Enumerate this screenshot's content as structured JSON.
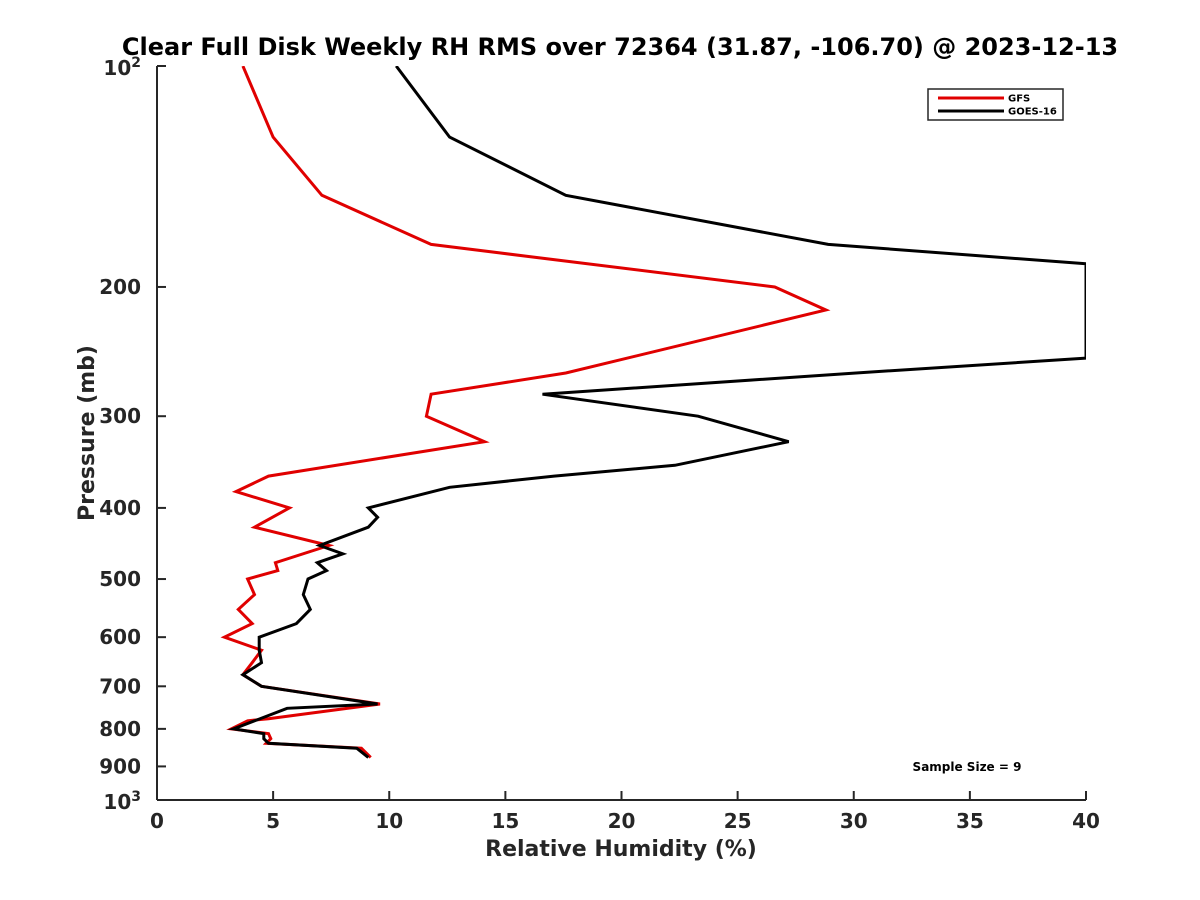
{
  "chart_data": {
    "type": "line",
    "title": "Clear Full Disk Weekly RH RMS over 72364 (31.87, -106.70) @ 2023-12-13",
    "xlabel": "Relative Humidity (%)",
    "ylabel": "Pressure (mb)",
    "xlim": [
      0,
      40
    ],
    "ylim": [
      100,
      1000
    ],
    "y_scale": "log",
    "y_reversed": true,
    "grid": false,
    "legend_position": "top-right",
    "x_ticks": [
      0,
      5,
      10,
      15,
      20,
      25,
      30,
      35,
      40
    ],
    "x_tick_labels": [
      "0",
      "5",
      "10",
      "15",
      "20",
      "25",
      "30",
      "35",
      "40"
    ],
    "y_ticks": [
      {
        "value": 100,
        "base": "10",
        "exp": "2"
      },
      {
        "value": 200,
        "label": "200"
      },
      {
        "value": 300,
        "label": "300"
      },
      {
        "value": 400,
        "label": "400"
      },
      {
        "value": 500,
        "label": "500"
      },
      {
        "value": 600,
        "label": "600"
      },
      {
        "value": 700,
        "label": "700"
      },
      {
        "value": 800,
        "label": "800"
      },
      {
        "value": 900,
        "label": "900"
      },
      {
        "value": 1000,
        "base": "10",
        "exp": "3"
      }
    ],
    "series": [
      {
        "name": "GFS",
        "color": "#e00000",
        "points": [
          [
            3.7,
            100
          ],
          [
            5.0,
            125
          ],
          [
            7.1,
            150
          ],
          [
            11.8,
            175
          ],
          [
            26.6,
            200
          ],
          [
            28.8,
            215
          ],
          [
            17.6,
            262
          ],
          [
            11.8,
            280
          ],
          [
            11.6,
            300
          ],
          [
            14.1,
            325
          ],
          [
            4.8,
            362
          ],
          [
            3.4,
            380
          ],
          [
            5.7,
            400
          ],
          [
            4.2,
            425
          ],
          [
            7.4,
            450
          ],
          [
            5.1,
            475
          ],
          [
            5.2,
            487
          ],
          [
            3.9,
            500
          ],
          [
            4.2,
            525
          ],
          [
            3.5,
            550
          ],
          [
            4.1,
            575
          ],
          [
            2.9,
            600
          ],
          [
            4.5,
            625
          ],
          [
            4.1,
            650
          ],
          [
            3.7,
            675
          ],
          [
            4.5,
            700
          ],
          [
            9.6,
            740
          ],
          [
            4.8,
            775
          ],
          [
            3.9,
            780
          ],
          [
            3.2,
            800
          ],
          [
            4.8,
            812
          ],
          [
            4.9,
            825
          ],
          [
            4.7,
            837
          ],
          [
            8.8,
            850
          ],
          [
            9.2,
            875
          ]
        ]
      },
      {
        "name": "GOES-16",
        "color": "#000000",
        "points": [
          [
            10.3,
            100
          ],
          [
            12.6,
            125
          ],
          [
            17.6,
            150
          ],
          [
            28.9,
            175
          ],
          [
            40.0,
            186
          ],
          [
            40.0,
            250
          ],
          [
            30.1,
            262
          ],
          [
            16.6,
            280
          ],
          [
            23.3,
            300
          ],
          [
            27.2,
            325
          ],
          [
            22.3,
            350
          ],
          [
            17.1,
            362
          ],
          [
            12.6,
            375
          ],
          [
            9.1,
            400
          ],
          [
            9.5,
            412
          ],
          [
            9.1,
            425
          ],
          [
            7.0,
            450
          ],
          [
            8.0,
            462
          ],
          [
            6.9,
            475
          ],
          [
            7.3,
            487
          ],
          [
            6.5,
            500
          ],
          [
            6.3,
            525
          ],
          [
            6.6,
            550
          ],
          [
            6.0,
            575
          ],
          [
            4.4,
            600
          ],
          [
            4.4,
            625
          ],
          [
            4.5,
            650
          ],
          [
            3.7,
            675
          ],
          [
            4.5,
            700
          ],
          [
            9.5,
            740
          ],
          [
            5.6,
            750
          ],
          [
            3.3,
            800
          ],
          [
            4.6,
            812
          ],
          [
            4.6,
            825
          ],
          [
            4.8,
            837
          ],
          [
            8.6,
            850
          ],
          [
            9.1,
            875
          ]
        ]
      }
    ],
    "annotations": [
      {
        "text": "Sample Size = 9"
      }
    ]
  }
}
